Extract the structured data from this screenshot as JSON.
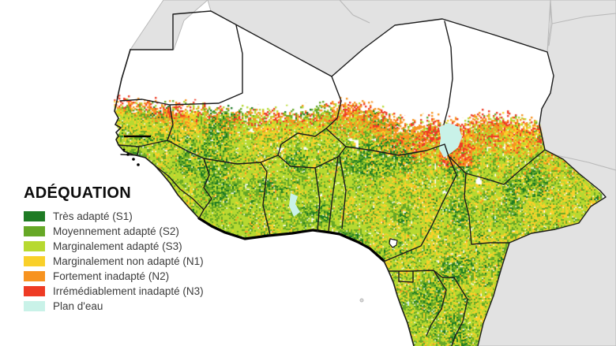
{
  "legend": {
    "title": "ADÉQUATION",
    "items": [
      {
        "key": "s1",
        "label": "Très adapté (S1)",
        "color": "#1e7b24"
      },
      {
        "key": "s2",
        "label": "Moyennement adapté (S2)",
        "color": "#66a826"
      },
      {
        "key": "s3",
        "label": "Marginalement adapté (S3)",
        "color": "#b7d930"
      },
      {
        "key": "n1",
        "label": "Marginalement non adapté (N1)",
        "color": "#f9d02a"
      },
      {
        "key": "n2",
        "label": "Fortement inadapté (N2)",
        "color": "#f79320"
      },
      {
        "key": "n3",
        "label": "Irrémédiablement inadapté (N3)",
        "color": "#ee3b24"
      },
      {
        "key": "water",
        "label": "Plan d'eau",
        "color": "#c9f2e8"
      }
    ]
  },
  "map": {
    "colors": {
      "ocean": "#ffffff",
      "no_data_land": "#ffffff",
      "background_country_fill": "#e2e2e2",
      "background_country_border": "#b9b9b9",
      "mapped_country_border": "#1b1b1b",
      "coastline": "#000000",
      "lake": "#c9f2e8"
    }
  }
}
